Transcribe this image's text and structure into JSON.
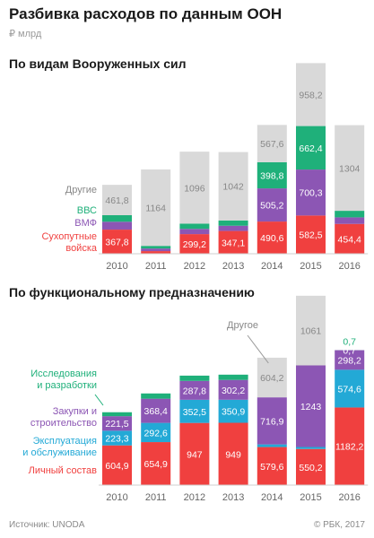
{
  "header": {
    "title": "Разбивка расходов по данным ООН",
    "unit": "₽ млрд"
  },
  "charts": {
    "panel1_title": "По видам Вооруженных сил",
    "panel2_title": "По функциональному предназначению"
  },
  "legend1": {
    "other": "Другие",
    "vvs": "ВВС",
    "vmf": "ВМФ",
    "ground_1": "Сухопутные",
    "ground_2": "войска"
  },
  "legend2": {
    "other": "Другое",
    "rd_1": "Исследования",
    "rd_2": "и разработки",
    "proc_1": "Закупки и",
    "proc_2": "строительство",
    "ops_1": "Эксплуатация",
    "ops_2": "и обслуживание",
    "pers": "Личный состав"
  },
  "colors": {
    "ground": "#f0403f",
    "vmf": "#8c56b4",
    "vvs": "#1fb07a",
    "other": "#d9d9d9",
    "personnel": "#f0403f",
    "ops": "#23a9d6",
    "procurement": "#8c56b4",
    "rd": "#1fb07a",
    "other_func": "#d9d9d9"
  },
  "chart_data": [
    {
      "type": "bar",
      "stacked": true,
      "title": "По видам Вооруженных сил",
      "categories": [
        "2010",
        "2011",
        "2012",
        "2013",
        "2014",
        "2015",
        "2016"
      ],
      "series": [
        {
          "name": "Сухопутные войска",
          "values": [
            367.8,
            40,
            299.2,
            347.1,
            490.6,
            582.5,
            454.4
          ],
          "labels": [
            "367,8",
            "",
            "299,2",
            "347,1",
            "490,6",
            "582,5",
            "454,4"
          ]
        },
        {
          "name": "ВМФ",
          "values": [
            120,
            40,
            80,
            80,
            505.2,
            700.3,
            100
          ],
          "labels": [
            "",
            "",
            "",
            "",
            "505,2",
            "700,3",
            ""
          ]
        },
        {
          "name": "ВВС",
          "values": [
            100,
            40,
            80,
            80,
            398.8,
            662.4,
            100
          ],
          "labels": [
            "",
            "",
            "",
            "",
            "398,8",
            "662,4",
            ""
          ]
        },
        {
          "name": "Другие",
          "values": [
            461.8,
            1164,
            1096,
            1042,
            567.6,
            958.2,
            1304
          ],
          "labels": [
            "461,8",
            "1164",
            "1096",
            "1042",
            "567,6",
            "958,2",
            "1304"
          ]
        }
      ],
      "ylim": [
        0,
        2950
      ]
    },
    {
      "type": "bar",
      "stacked": true,
      "title": "По функциональному предназначению",
      "categories": [
        "2010",
        "2011",
        "2012",
        "2013",
        "2014",
        "2015",
        "2016"
      ],
      "series": [
        {
          "name": "Личный состав",
          "values": [
            604.9,
            654.9,
            947,
            949,
            579.6,
            550.2,
            1182.2
          ],
          "labels": [
            "604,9",
            "654,9",
            "947",
            "949",
            "579,6",
            "550,2",
            "1182,2"
          ]
        },
        {
          "name": "Эксплуатация и обслуживание",
          "values": [
            223.3,
            292.6,
            352.5,
            350.9,
            40,
            30,
            574.6
          ],
          "labels": [
            "223,3",
            "292,6",
            "352,5",
            "350,9",
            "",
            "",
            "574,6"
          ]
        },
        {
          "name": "Закупки и строительство",
          "values": [
            221.5,
            368.4,
            287.8,
            302.2,
            716.9,
            1243,
            298.2
          ],
          "labels": [
            "221,5",
            "368,4",
            "287,8",
            "302,2",
            "716,9",
            "1243",
            "298,2"
          ]
        },
        {
          "name": "Исследования и разработки",
          "values": [
            60,
            80,
            80,
            80,
            0,
            0,
            0.7
          ],
          "labels": [
            "",
            "",
            "",
            "",
            "",
            "",
            "0,7"
          ]
        },
        {
          "name": "Другое",
          "values": [
            0,
            0,
            0,
            0,
            604.2,
            1061,
            0
          ],
          "labels": [
            "",
            "",
            "",
            "",
            "604,2",
            "1061",
            ""
          ]
        }
      ],
      "ylim": [
        0,
        2950
      ]
    }
  ],
  "footer": {
    "source": "Источник: UNODA",
    "copyright": "© РБК, 2017"
  }
}
